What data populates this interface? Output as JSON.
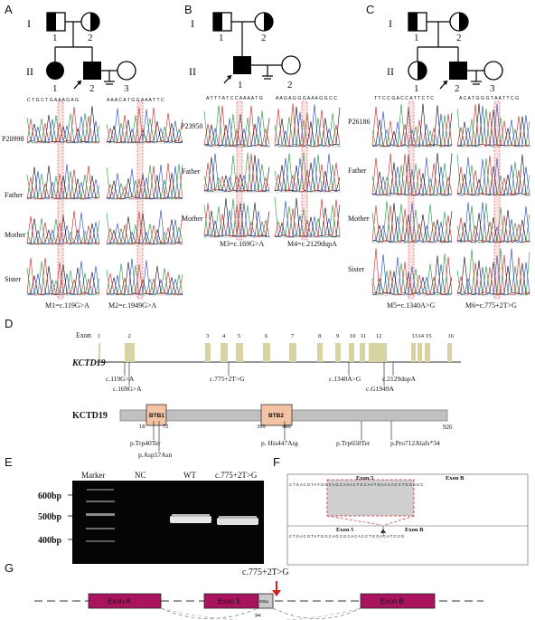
{
  "panels": {
    "A": {
      "letter": "A",
      "gen1": "I",
      "gen2": "II",
      "n1": "1",
      "n2": "2",
      "c1": "1",
      "c2": "2",
      "c3": "3",
      "seq_left": "C T G C T G A A A G A G",
      "seq_right": "A A A C A T G G A A A T T C",
      "rows": [
        "P20998",
        "Father",
        "Mother",
        "Sister"
      ],
      "m_left": "M1=c.119G>A",
      "m_right": "M2=c.1949G>A"
    },
    "B": {
      "letter": "B",
      "gen1": "I",
      "gen2": "II",
      "n1": "1",
      "n2": "2",
      "c1": "1",
      "c2": "2",
      "seq_left": "A T T T A T C C A A A A T G",
      "seq_right": "A A G A G G G A A A G G C C",
      "rows": [
        "P23950",
        "Father",
        "Mother"
      ],
      "m_left": "M3=c.169G>A",
      "m_right": "M4=c.2129dupA"
    },
    "C": {
      "letter": "C",
      "gen1": "I",
      "gen2": "II",
      "n1": "1",
      "n2": "2",
      "c1": "1",
      "c2": "2",
      "c3": "3",
      "seq_left": "T T C C G A C C A T T C T C",
      "seq_right": "A C A T G G G T A A T T C G",
      "rows": [
        "P26186",
        "Father",
        "Mother",
        "Sister"
      ],
      "m_left": "M5=c.1340A>G",
      "m_right": "M6=c.775+2T>G"
    }
  },
  "panelD": {
    "letter": "D",
    "exon_label": "Exon",
    "exon_numbers": [
      "1",
      "2",
      "3",
      "4",
      "5",
      "6",
      "7",
      "8",
      "9",
      "10",
      "11",
      "12",
      "13",
      "14",
      "15",
      "16"
    ],
    "gene": "KCTD19",
    "gene_variants": [
      "c.119G>A",
      "c.169G>A",
      "c.775+2T>G",
      "c.1340A>G",
      "c.G1949A",
      "c.2129dupA"
    ],
    "protein": "KCTD19",
    "domains": [
      {
        "name": "BTB1",
        "start": "18",
        "end": "72"
      },
      {
        "name": "BTB2",
        "start": "399",
        "end": "486"
      }
    ],
    "length": "926",
    "protein_variants": [
      "p.Trp40Ter",
      "p.Asp57Asn",
      "p. His447Arg",
      "p.Trp650Ter",
      "p.Pro712Alafs*34"
    ]
  },
  "panelE": {
    "letter": "E",
    "lanes": [
      "Marker",
      "NC",
      "WT",
      "c.775+2T>G"
    ],
    "sizes": [
      "600bp",
      "500bp",
      "400bp"
    ]
  },
  "panelF": {
    "letter": "F",
    "top_labels": [
      "Exon 5",
      "Exon B"
    ],
    "bottom_labels": [
      "Exon 5",
      "Exon B"
    ],
    "seq_top": "C T G A C G T A T G G C A G C A A A C T G C A A T G A A C A C C T G G A G C",
    "seq_bottom": "C T G A C G T A T G G C A G C G C A C A C C T G G A C A T C G G"
  },
  "panelG": {
    "letter": "G",
    "variant": "c.775+2T>G",
    "exons": [
      "Exon A",
      "Exon 5",
      "Exon B"
    ],
    "small_box": "90bp"
  },
  "colors": {
    "exon_box": "#a8145e",
    "domain": "#f4c2a4",
    "exon_bar": "#d8d3a2",
    "highlight": "#e06060"
  }
}
